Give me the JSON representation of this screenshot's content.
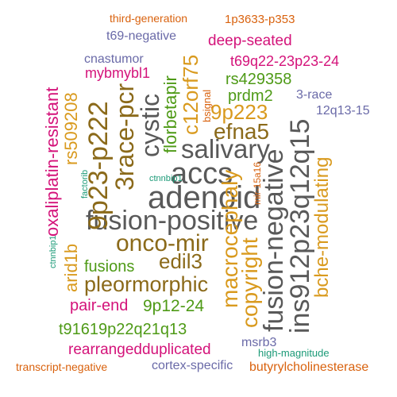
{
  "palette": {
    "gray": "#595959",
    "gold": "#D99A1E",
    "green": "#4E9A16",
    "magenta": "#D4137A",
    "orange": "#D9620E",
    "slate": "#6A6AA8",
    "teal": "#1B9A77"
  },
  "words": [
    {
      "id": "fusion-positive",
      "text": "fusion-positive",
      "color": "#595959"
    },
    {
      "id": "adenoid",
      "text": "adenoid",
      "color": "#595959"
    },
    {
      "id": "accs",
      "text": "accs",
      "color": "#595959"
    },
    {
      "id": "cystic",
      "text": "cystic",
      "color": "#595959"
    },
    {
      "id": "salivary",
      "text": "salivary",
      "color": "#595959"
    },
    {
      "id": "fusion-negative",
      "text": "fusion-negative",
      "color": "#595959"
    },
    {
      "id": "ins912p23q12q15",
      "text": "ins912p23q12q15",
      "color": "#595959"
    },
    {
      "id": "9p23-p222",
      "text": "9p23-p222",
      "color": "#8B6A1A"
    },
    {
      "id": "3race-pcr",
      "text": "3race-pcr",
      "color": "#8B6A1A"
    },
    {
      "id": "onco-mir",
      "text": "onco-mir",
      "color": "#8B6A1A"
    },
    {
      "id": "edil3",
      "text": "edil3",
      "color": "#8B6A1A"
    },
    {
      "id": "pleormorphic",
      "text": "pleormorphic",
      "color": "#8B6A1A"
    },
    {
      "id": "efna5",
      "text": "efna5",
      "color": "#8B6A1A"
    },
    {
      "id": "9p223",
      "text": "9p223",
      "color": "#D99A1E"
    },
    {
      "id": "c12orf75",
      "text": "c12orf75",
      "color": "#D99A1E"
    },
    {
      "id": "macrocephaly",
      "text": "macrocephaly",
      "color": "#D99A1E"
    },
    {
      "id": "copyright",
      "text": "copyright",
      "color": "#D99A1E"
    },
    {
      "id": "arid1b",
      "text": "arid1b",
      "color": "#D99A1E"
    },
    {
      "id": "rs509208",
      "text": "rs509208",
      "color": "#D99A1E"
    },
    {
      "id": "bche-modulating",
      "text": "bche-modulating",
      "color": "#D99A1E"
    },
    {
      "id": "oxaliplatin-resistant",
      "text": "oxaliplatin-resistant",
      "color": "#D4137A"
    },
    {
      "id": "mybmybl1",
      "text": "mybmybl1",
      "color": "#D4137A"
    },
    {
      "id": "t69q22-23p23-24",
      "text": "t69q22-23p23-24",
      "color": "#D4137A"
    },
    {
      "id": "deep-seated",
      "text": "deep-seated",
      "color": "#D4137A"
    },
    {
      "id": "pair-end",
      "text": "pair-end",
      "color": "#D4137A"
    },
    {
      "id": "rearrangedduplicated",
      "text": "rearrangedduplicated",
      "color": "#D4137A"
    },
    {
      "id": "1p3633-p353",
      "text": "1p3633-p353",
      "color": "#D9620E"
    },
    {
      "id": "third-generation",
      "text": "third-generation",
      "color": "#D9620E"
    },
    {
      "id": "transcript-negative",
      "text": "transcript-negative",
      "color": "#D9620E"
    },
    {
      "id": "butyrylcholinesterase",
      "text": "butyrylcholinesterase",
      "color": "#D9620E"
    },
    {
      "id": "bsignal",
      "text": "bsignal",
      "color": "#D9620E"
    },
    {
      "id": "mir-15a16",
      "text": "mir-15a16",
      "color": "#D9620E"
    },
    {
      "id": "rs429358",
      "text": "rs429358",
      "color": "#4E9A16"
    },
    {
      "id": "prdm2",
      "text": "prdm2",
      "color": "#4E9A16"
    },
    {
      "id": "florbetapir",
      "text": "florbetapir",
      "color": "#4E9A16"
    },
    {
      "id": "fusions",
      "text": "fusions",
      "color": "#4E9A16"
    },
    {
      "id": "9p12-24",
      "text": "9p12-24",
      "color": "#4E9A16"
    },
    {
      "id": "t91619p22q21q13",
      "text": "t91619p22q21q13",
      "color": "#4E9A16"
    },
    {
      "id": "t69-negative",
      "text": "t69-negative",
      "color": "#6A6AA8"
    },
    {
      "id": "cnastumor",
      "text": "cnastumor",
      "color": "#6A6AA8"
    },
    {
      "id": "3-race",
      "text": "3-race",
      "color": "#6A6AA8"
    },
    {
      "id": "12q13-15",
      "text": "12q13-15",
      "color": "#6A6AA8"
    },
    {
      "id": "msrb3",
      "text": "msrb3",
      "color": "#6A6AA8"
    },
    {
      "id": "cortex-specific",
      "text": "cortex-specific",
      "color": "#6A6AA8"
    },
    {
      "id": "factorib",
      "text": "factorib",
      "color": "#1B9A77"
    },
    {
      "id": "adni",
      "text": "adni",
      "color": "#1B9A77"
    },
    {
      "id": "ctnnbip1",
      "text": "ctnnbip1",
      "color": "#1B9A77"
    },
    {
      "id": "high-magnitude",
      "text": "high-magnitude",
      "color": "#1B9A77"
    }
  ]
}
